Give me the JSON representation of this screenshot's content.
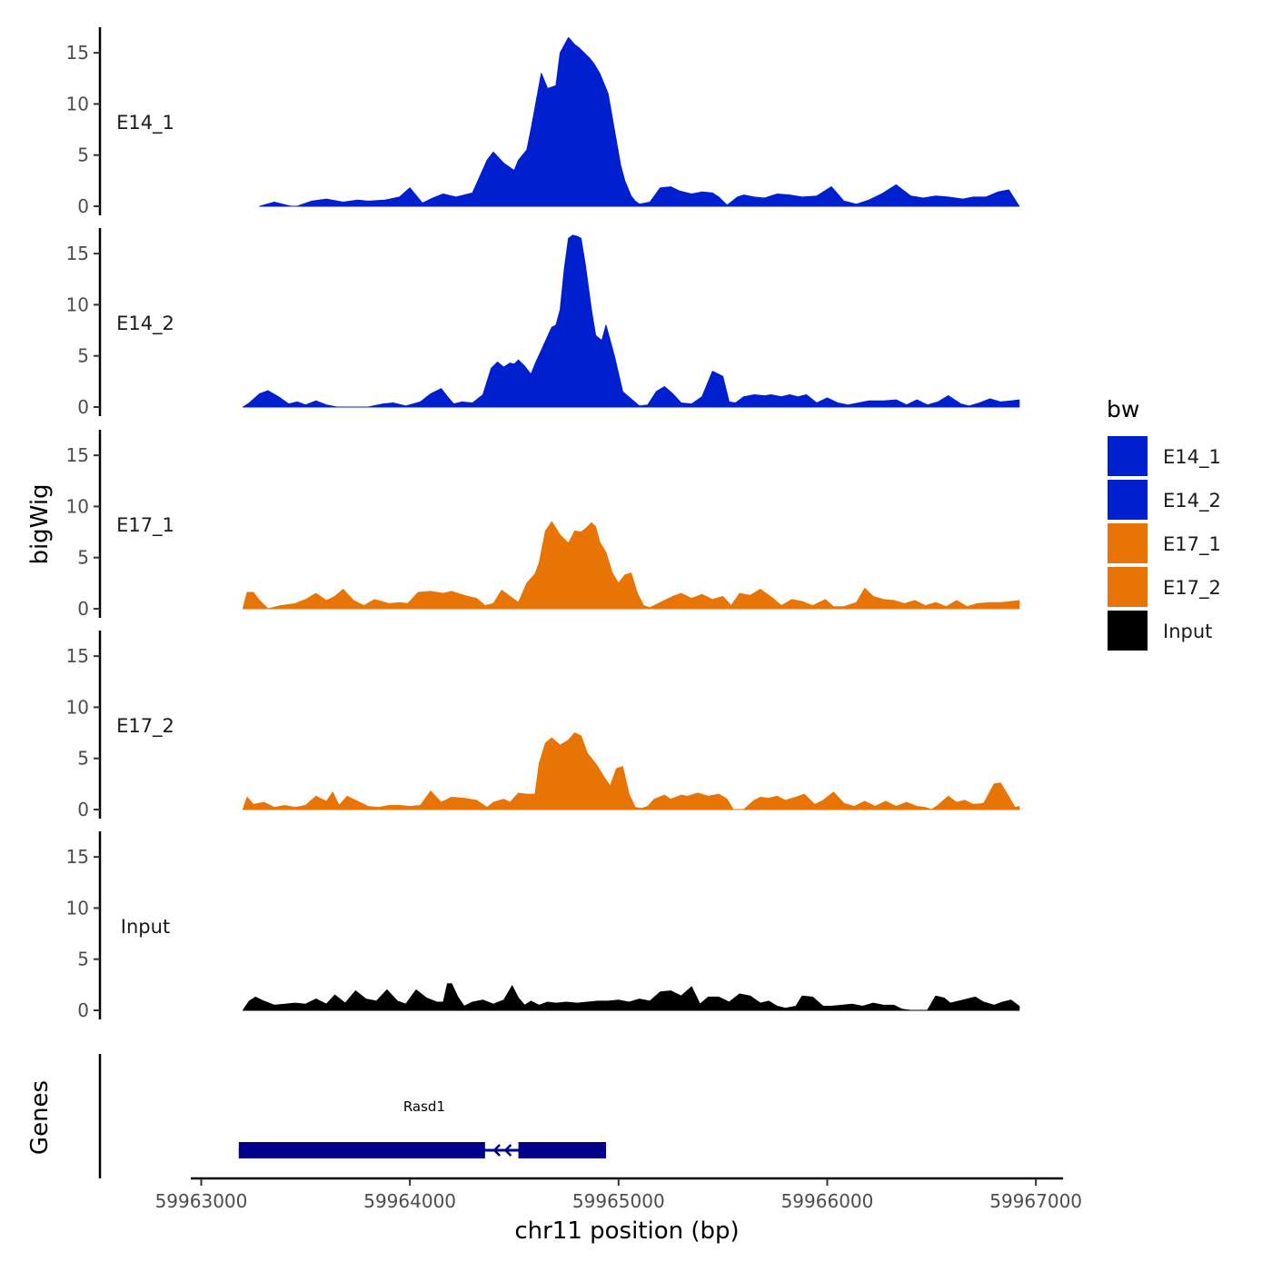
{
  "chart_data": {
    "type": "area",
    "y_title": "bigWig",
    "x_title": "chr11 position (bp)",
    "xlim": [
      59962950,
      59967130
    ],
    "ylim": [
      0,
      17.5
    ],
    "y_ticks": [
      0,
      5,
      10,
      15
    ],
    "y_tick_labels": [
      "0",
      "5",
      "10",
      "15"
    ],
    "x_ticks": [
      59963000,
      59964000,
      59965000,
      59966000,
      59967000
    ],
    "x_tick_labels": [
      "59963000",
      "59964000",
      "59965000",
      "59966000",
      "59967000"
    ],
    "legend": {
      "title": "bw",
      "entries": [
        {
          "label": "E14_1",
          "color": "#0020D0"
        },
        {
          "label": "E14_2",
          "color": "#0020D0"
        },
        {
          "label": "E17_1",
          "color": "#E87405"
        },
        {
          "label": "E17_2",
          "color": "#E87405"
        },
        {
          "label": "Input",
          "color": "#000000"
        }
      ]
    },
    "tracks": [
      {
        "name": "E14_1",
        "color": "#0020D0",
        "x": [
          59963280,
          59963350,
          59963430,
          59963460,
          59963530,
          59963600,
          59963680,
          59963750,
          59963800,
          59963880,
          59963950,
          59964000,
          59964060,
          59964110,
          59964160,
          59964220,
          59964300,
          59964370,
          59964400,
          59964450,
          59964500,
          59964520,
          59964560,
          59964580,
          59964630,
          59964660,
          59964700,
          59964720,
          59964760,
          59964790,
          59964810,
          59964860,
          59964880,
          59964910,
          59964950,
          59964980,
          59965010,
          59965030,
          59965060,
          59965080,
          59965100,
          59965150,
          59965200,
          59965250,
          59965290,
          59965350,
          59965400,
          59965450,
          59965480,
          59965520,
          59965570,
          59965600,
          59965650,
          59965700,
          59965760,
          59965820,
          59965880,
          59965950,
          59966020,
          59966080,
          59966140,
          59966200,
          59966260,
          59966330,
          59966400,
          59966460,
          59966520,
          59966580,
          59966650,
          59966700,
          59966760,
          59966820,
          59966870,
          59966920
        ],
        "values": [
          0,
          0.4,
          0,
          0,
          0.5,
          0.7,
          0.4,
          0.6,
          0.5,
          0.6,
          0.9,
          1.8,
          0.3,
          0.8,
          1.2,
          0.9,
          1.3,
          4.5,
          5.3,
          4.2,
          3.5,
          4.5,
          5.5,
          7.5,
          13.0,
          11.5,
          11.8,
          15.0,
          16.5,
          15.8,
          15.5,
          14.5,
          14.0,
          13.0,
          11.0,
          7.5,
          4.0,
          2.5,
          1.0,
          0.5,
          0.2,
          0.4,
          1.8,
          1.9,
          1.5,
          1.2,
          1.4,
          1.3,
          0.9,
          0.1,
          0.9,
          1.1,
          0.9,
          0.8,
          1.2,
          1.1,
          0.9,
          1.0,
          1.9,
          0.5,
          0.2,
          0.6,
          1.2,
          2.1,
          1.0,
          0.8,
          1.0,
          0.9,
          0.7,
          0.9,
          0.9,
          1.4,
          1.6,
          0
        ]
      },
      {
        "name": "E14_2",
        "color": "#0020D0",
        "x": [
          59963200,
          59963230,
          59963280,
          59963320,
          59963370,
          59963420,
          59963460,
          59963500,
          59963550,
          59963600,
          59963650,
          59963700,
          59963730,
          59963800,
          59963870,
          59963920,
          59963980,
          59964050,
          59964100,
          59964150,
          59964180,
          59964210,
          59964250,
          59964300,
          59964350,
          59964390,
          59964420,
          59964450,
          59964480,
          59964500,
          59964520,
          59964550,
          59964580,
          59964600,
          59964640,
          59964680,
          59964700,
          59964720,
          59964740,
          59964760,
          59964780,
          59964800,
          59964820,
          59964840,
          59964870,
          59964890,
          59964920,
          59964940,
          59964980,
          59965020,
          59965060,
          59965100,
          59965140,
          59965180,
          59965220,
          59965260,
          59965300,
          59965350,
          59965400,
          59965450,
          59965500,
          59965530,
          59965560,
          59965600,
          59965650,
          59965700,
          59965730,
          59965780,
          59965820,
          59965860,
          59965900,
          59965950,
          59966000,
          59966050,
          59966100,
          59966150,
          59966200,
          59966270,
          59966330,
          59966380,
          59966430,
          59966480,
          59966530,
          59966580,
          59966640,
          59966680,
          59966730,
          59966780,
          59966830,
          59966880,
          59966920
        ],
        "values": [
          0,
          0.4,
          1.3,
          1.6,
          1.0,
          0.3,
          0.5,
          0.2,
          0.6,
          0.2,
          0,
          0,
          0,
          0,
          0.3,
          0.4,
          0.1,
          0.5,
          1.3,
          1.8,
          1.0,
          0.3,
          0.5,
          0.4,
          1.2,
          3.8,
          4.4,
          3.9,
          4.3,
          4.2,
          4.6,
          4.0,
          3.2,
          4.2,
          6.0,
          7.8,
          8.0,
          9.5,
          13.5,
          16.5,
          16.8,
          16.7,
          16.5,
          14.0,
          9.5,
          7.0,
          6.5,
          8.0,
          5.0,
          1.5,
          0.8,
          0.1,
          0.2,
          1.5,
          2.0,
          1.3,
          0.4,
          0.3,
          1.0,
          3.5,
          3.0,
          0.5,
          0.4,
          1.0,
          1.2,
          1.1,
          1.2,
          1.0,
          1.2,
          1.0,
          1.2,
          0.4,
          0.9,
          0.4,
          0.2,
          0.4,
          0.6,
          0.6,
          0.7,
          0.2,
          0.7,
          0.2,
          0.5,
          1.1,
          0.3,
          0.1,
          0.4,
          0.8,
          0.5,
          0.6,
          0.7
        ]
      },
      {
        "name": "E17_1",
        "color": "#E87405",
        "x": [
          59963200,
          59963220,
          59963250,
          59963280,
          59963320,
          59963380,
          59963450,
          59963500,
          59963550,
          59963600,
          59963640,
          59963680,
          59963730,
          59963780,
          59963830,
          59963900,
          59963950,
          59963990,
          59964040,
          59964100,
          59964160,
          59964200,
          59964260,
          59964320,
          59964360,
          59964400,
          59964440,
          59964480,
          59964520,
          59964560,
          59964600,
          59964620,
          59964650,
          59964680,
          59964720,
          59964760,
          59964790,
          59964820,
          59964840,
          59964870,
          59964890,
          59964910,
          59964940,
          59964970,
          59965000,
          59965030,
          59965060,
          59965090,
          59965120,
          59965150,
          59965200,
          59965260,
          59965300,
          59965350,
          59965400,
          59965450,
          59965500,
          59965540,
          59965580,
          59965630,
          59965680,
          59965740,
          59965780,
          59965830,
          59965880,
          59965930,
          59965990,
          59966030,
          59966080,
          59966140,
          59966180,
          59966220,
          59966270,
          59966320,
          59966370,
          59966420,
          59966470,
          59966520,
          59966570,
          59966620,
          59966670,
          59966720,
          59966780,
          59966830,
          59966880,
          59966920
        ],
        "values": [
          0,
          1.6,
          1.6,
          0.8,
          0,
          0.3,
          0.5,
          0.9,
          1.5,
          0.8,
          1.2,
          1.9,
          0.8,
          0.3,
          0.9,
          0.5,
          0.6,
          0.5,
          1.6,
          1.7,
          1.5,
          1.7,
          1.3,
          1.0,
          0.3,
          0.5,
          1.8,
          1.2,
          0.6,
          2.5,
          3.4,
          4.5,
          7.6,
          8.5,
          7.2,
          6.4,
          7.6,
          7.5,
          7.8,
          8.4,
          8.0,
          6.5,
          5.5,
          3.5,
          2.5,
          3.3,
          3.5,
          1.5,
          0.3,
          0.1,
          0.6,
          1.2,
          1.5,
          1.0,
          1.4,
          0.9,
          1.2,
          0.3,
          1.5,
          1.3,
          1.9,
          1.0,
          0.3,
          0.9,
          0.7,
          0.3,
          0.9,
          0.2,
          0.2,
          0.6,
          2.0,
          1.2,
          0.9,
          0.8,
          0.5,
          0.8,
          0.3,
          0.6,
          0.2,
          0.8,
          0.2,
          0.5,
          0.6,
          0.6,
          0.7,
          0.8
        ]
      },
      {
        "name": "E17_2",
        "color": "#E87405",
        "x": [
          59963200,
          59963220,
          59963250,
          59963300,
          59963350,
          59963400,
          59963450,
          59963500,
          59963550,
          59963600,
          59963630,
          59963660,
          59963700,
          59963740,
          59963800,
          59963850,
          59963900,
          59963950,
          59964000,
          59964050,
          59964100,
          59964150,
          59964200,
          59964260,
          59964320,
          59964370,
          59964400,
          59964450,
          59964480,
          59964520,
          59964560,
          59964600,
          59964620,
          59964650,
          59964680,
          59964720,
          59964760,
          59964790,
          59964820,
          59964850,
          59964870,
          59964900,
          59964930,
          59964960,
          59964990,
          59965020,
          59965050,
          59965080,
          59965110,
          59965140,
          59965170,
          59965220,
          59965250,
          59965300,
          59965330,
          59965380,
          59965430,
          59965480,
          59965520,
          59965550,
          59965600,
          59965650,
          59965680,
          59965720,
          59965760,
          59965800,
          59965850,
          59965890,
          59965940,
          59965980,
          59966030,
          59966080,
          59966130,
          59966180,
          59966230,
          59966280,
          59966330,
          59966380,
          59966430,
          59966470,
          59966500,
          59966530,
          59966580,
          59966620,
          59966660,
          59966700,
          59966750,
          59966800,
          59966830,
          59966860,
          59966900,
          59966920
        ],
        "values": [
          0,
          1.2,
          0.5,
          0.7,
          0.2,
          0.4,
          0.2,
          0.4,
          1.3,
          0.8,
          1.7,
          0.4,
          1.3,
          0.9,
          0.3,
          0.2,
          0.4,
          0.4,
          0.3,
          0.4,
          1.8,
          0.7,
          1.2,
          1.1,
          0.9,
          0.2,
          0.7,
          1.0,
          0.7,
          1.6,
          1.5,
          1.5,
          4.5,
          6.5,
          7.0,
          6.3,
          6.8,
          7.5,
          7.2,
          5.5,
          5.0,
          4.2,
          3.2,
          2.3,
          4.0,
          4.2,
          1.5,
          0.2,
          0.1,
          0.3,
          1.0,
          1.4,
          1.0,
          1.4,
          1.3,
          1.6,
          1.3,
          1.5,
          1.0,
          0,
          0,
          0.9,
          1.2,
          1.1,
          1.3,
          0.9,
          1.2,
          1.5,
          0.5,
          0.9,
          1.7,
          0.6,
          0.3,
          0.8,
          0.3,
          0.8,
          0.3,
          0.7,
          0.3,
          0.2,
          0,
          0.4,
          1.3,
          0.7,
          0.9,
          0.5,
          0.6,
          2.5,
          2.6,
          1.6,
          0.2,
          0.3
        ]
      },
      {
        "name": "Input",
        "color": "#000000",
        "x": [
          59963200,
          59963230,
          59963260,
          59963300,
          59963350,
          59963400,
          59963450,
          59963500,
          59963550,
          59963600,
          59963640,
          59963690,
          59963740,
          59963790,
          59963840,
          59963890,
          59963940,
          59963980,
          59964030,
          59964080,
          59964130,
          59964160,
          59964180,
          59964200,
          59964230,
          59964260,
          59964300,
          59964350,
          59964400,
          59964450,
          59964490,
          59964520,
          59964550,
          59964580,
          59964620,
          59964660,
          59964700,
          59964750,
          59964800,
          59964850,
          59964900,
          59964950,
          59965000,
          59965050,
          59965100,
          59965150,
          59965200,
          59965250,
          59965300,
          59965350,
          59965390,
          59965430,
          59965480,
          59965530,
          59965580,
          59965630,
          59965680,
          59965720,
          59965760,
          59965800,
          59965850,
          59965880,
          59965930,
          59965980,
          59966020,
          59966070,
          59966120,
          59966170,
          59966220,
          59966270,
          59966320,
          59966360,
          59966400,
          59966440,
          59966480,
          59966520,
          59966560,
          59966590,
          59966630,
          59966670,
          59966710,
          59966750,
          59966800,
          59966840,
          59966880,
          59966920
        ],
        "values": [
          0,
          0.9,
          1.3,
          0.9,
          0.5,
          0.6,
          0.7,
          0.6,
          1.1,
          0.6,
          1.5,
          0.7,
          1.9,
          1.1,
          0.9,
          2.0,
          0.9,
          0.6,
          2.0,
          1.2,
          0.8,
          0.8,
          2.6,
          2.6,
          1.3,
          0.4,
          0.8,
          1.0,
          0.6,
          1.0,
          2.4,
          1.2,
          0.5,
          0.9,
          0.5,
          0.8,
          0.7,
          0.8,
          0.7,
          0.8,
          0.9,
          0.9,
          1.0,
          0.8,
          1.1,
          0.9,
          1.8,
          1.9,
          1.4,
          2.3,
          0.6,
          1.3,
          1.3,
          0.8,
          1.6,
          1.4,
          0.7,
          0.9,
          0.4,
          0.2,
          0.4,
          1.4,
          1.3,
          0.4,
          0.4,
          0.5,
          0.6,
          0.4,
          0.7,
          0.5,
          0.5,
          0.1,
          0,
          0,
          0,
          1.4,
          1.2,
          0.7,
          0.9,
          1.1,
          1.3,
          0.8,
          0.5,
          0.8,
          1.0,
          0.4
        ]
      }
    ],
    "genes": {
      "title": "Genes",
      "items": [
        {
          "name": "Rasd1",
          "strand": "-",
          "start": 59963180,
          "end": 59964940,
          "exons": [
            [
              59963180,
              59964360
            ],
            [
              59964520,
              59964940
            ]
          ],
          "color": "#00008B"
        }
      ]
    }
  }
}
